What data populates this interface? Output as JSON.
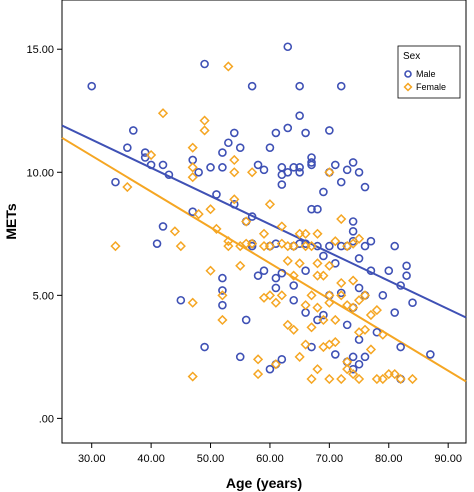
{
  "chart_data": {
    "type": "scatter",
    "xlabel": "Age (years)",
    "ylabel": "METs",
    "xlim": [
      25,
      93
    ],
    "ylim": [
      -1,
      17
    ],
    "xticks": [
      30,
      40,
      50,
      60,
      70,
      80,
      90
    ],
    "xtick_labels": [
      "30.00",
      "40.00",
      "50.00",
      "60.00",
      "70.00",
      "80.00",
      "90.00"
    ],
    "yticks": [
      0,
      5,
      10,
      15
    ],
    "ytick_labels": [
      ".00",
      "5.00",
      "10.00",
      "15.00"
    ],
    "legend": {
      "title": "Sex",
      "position": "top-right"
    },
    "series": [
      {
        "name": "Male",
        "marker": "circle",
        "color": "#3F51B5",
        "fit_line": [
          [
            25,
            11.9
          ],
          [
            93,
            4.1
          ]
        ],
        "points": [
          [
            30,
            13.5
          ],
          [
            34,
            9.6
          ],
          [
            36,
            11.0
          ],
          [
            37,
            11.7
          ],
          [
            39,
            10.8
          ],
          [
            39,
            10.6
          ],
          [
            40,
            10.3
          ],
          [
            41,
            7.1
          ],
          [
            42,
            10.3
          ],
          [
            42,
            7.8
          ],
          [
            43,
            9.9
          ],
          [
            45,
            4.8
          ],
          [
            47,
            10.5
          ],
          [
            47,
            8.4
          ],
          [
            48,
            10.0
          ],
          [
            49,
            2.9
          ],
          [
            49,
            14.4
          ],
          [
            50,
            10.2
          ],
          [
            51,
            9.1
          ],
          [
            52,
            10.2
          ],
          [
            52,
            10.8
          ],
          [
            52,
            5.7
          ],
          [
            52,
            5.2
          ],
          [
            52,
            4.6
          ],
          [
            53,
            11.2
          ],
          [
            54,
            8.7
          ],
          [
            54,
            11.6
          ],
          [
            55,
            11.0
          ],
          [
            55,
            2.5
          ],
          [
            56,
            4.0
          ],
          [
            56,
            8.0
          ],
          [
            57,
            13.5
          ],
          [
            57,
            7.1
          ],
          [
            57,
            7.0
          ],
          [
            57,
            8.2
          ],
          [
            58,
            5.8
          ],
          [
            58,
            10.3
          ],
          [
            59,
            6.0
          ],
          [
            59,
            10.1
          ],
          [
            60,
            11.0
          ],
          [
            60,
            7.0
          ],
          [
            60,
            2.0
          ],
          [
            61,
            11.6
          ],
          [
            61,
            7.1
          ],
          [
            61,
            5.7
          ],
          [
            61,
            5.3
          ],
          [
            61,
            2.2
          ],
          [
            62,
            9.9
          ],
          [
            62,
            9.5
          ],
          [
            62,
            10.2
          ],
          [
            62,
            5.9
          ],
          [
            62,
            2.4
          ],
          [
            63,
            15.1
          ],
          [
            63,
            11.8
          ],
          [
            63,
            10.0
          ],
          [
            64,
            10.2
          ],
          [
            64,
            7.0
          ],
          [
            64,
            5.4
          ],
          [
            64,
            4.8
          ],
          [
            65,
            13.5
          ],
          [
            65,
            12.3
          ],
          [
            65,
            10.0
          ],
          [
            65,
            10.2
          ],
          [
            65,
            7.1
          ],
          [
            66,
            11.6
          ],
          [
            66,
            7.1
          ],
          [
            66,
            6.0
          ],
          [
            66,
            4.3
          ],
          [
            67,
            10.6
          ],
          [
            67,
            10.4
          ],
          [
            67,
            10.3
          ],
          [
            67,
            8.5
          ],
          [
            67,
            2.9
          ],
          [
            68,
            8.5
          ],
          [
            68,
            7.0
          ],
          [
            68,
            4.0
          ],
          [
            69,
            9.2
          ],
          [
            69,
            6.6
          ],
          [
            69,
            4.2
          ],
          [
            70,
            11.7
          ],
          [
            70,
            10.0
          ],
          [
            70,
            7.0
          ],
          [
            70,
            5.0
          ],
          [
            71,
            10.3
          ],
          [
            71,
            6.3
          ],
          [
            71,
            2.6
          ],
          [
            72,
            13.5
          ],
          [
            72,
            9.6
          ],
          [
            72,
            7.0
          ],
          [
            72,
            5.1
          ],
          [
            73,
            10.1
          ],
          [
            73,
            7.0
          ],
          [
            73,
            3.8
          ],
          [
            73,
            2.3
          ],
          [
            74,
            10.4
          ],
          [
            74,
            8.0
          ],
          [
            74,
            7.6
          ],
          [
            74,
            7.2
          ],
          [
            74,
            4.5
          ],
          [
            74,
            2.5
          ],
          [
            74,
            2.0
          ],
          [
            75,
            10.0
          ],
          [
            75,
            6.5
          ],
          [
            75,
            5.3
          ],
          [
            75,
            3.2
          ],
          [
            75,
            2.2
          ],
          [
            76,
            9.4
          ],
          [
            76,
            7.0
          ],
          [
            76,
            5.0
          ],
          [
            76,
            2.5
          ],
          [
            77,
            7.2
          ],
          [
            77,
            6.0
          ],
          [
            78,
            3.5
          ],
          [
            79,
            5.0
          ],
          [
            80,
            6.0
          ],
          [
            81,
            7.0
          ],
          [
            81,
            4.3
          ],
          [
            82,
            5.4
          ],
          [
            82,
            2.9
          ],
          [
            82,
            1.6
          ],
          [
            83,
            5.8
          ],
          [
            83,
            6.2
          ],
          [
            84,
            4.7
          ],
          [
            87,
            2.6
          ]
        ]
      },
      {
        "name": "Female",
        "marker": "diamond",
        "color": "#F5A623",
        "fit_line": [
          [
            25,
            11.4
          ],
          [
            93,
            1.5
          ]
        ],
        "points": [
          [
            34,
            7.0
          ],
          [
            36,
            9.4
          ],
          [
            40,
            10.7
          ],
          [
            42,
            12.4
          ],
          [
            44,
            7.6
          ],
          [
            45,
            7.0
          ],
          [
            47,
            9.8
          ],
          [
            47,
            11.0
          ],
          [
            47,
            10.2
          ],
          [
            47,
            4.7
          ],
          [
            47,
            1.7
          ],
          [
            48,
            8.3
          ],
          [
            49,
            11.7
          ],
          [
            49,
            12.1
          ],
          [
            50,
            8.5
          ],
          [
            50,
            6.0
          ],
          [
            51,
            7.7
          ],
          [
            52,
            5.0
          ],
          [
            52,
            4.0
          ],
          [
            53,
            14.3
          ],
          [
            53,
            7.0
          ],
          [
            53,
            7.2
          ],
          [
            54,
            10.5
          ],
          [
            54,
            8.9
          ],
          [
            54,
            10.0
          ],
          [
            55,
            7.0
          ],
          [
            55,
            6.2
          ],
          [
            56,
            8.0
          ],
          [
            56,
            7.1
          ],
          [
            57,
            10.0
          ],
          [
            57,
            7.1
          ],
          [
            58,
            2.4
          ],
          [
            58,
            1.8
          ],
          [
            59,
            4.9
          ],
          [
            59,
            7.5
          ],
          [
            59,
            7.0
          ],
          [
            60,
            8.7
          ],
          [
            60,
            7.0
          ],
          [
            60,
            5.0
          ],
          [
            61,
            4.7
          ],
          [
            61,
            2.2
          ],
          [
            62,
            7.8
          ],
          [
            62,
            7.1
          ],
          [
            62,
            5.0
          ],
          [
            63,
            7.0
          ],
          [
            63,
            6.4
          ],
          [
            63,
            3.8
          ],
          [
            64,
            7.0
          ],
          [
            64,
            5.8
          ],
          [
            64,
            3.6
          ],
          [
            65,
            7.5
          ],
          [
            65,
            6.3
          ],
          [
            65,
            2.5
          ],
          [
            66,
            7.5
          ],
          [
            66,
            7.0
          ],
          [
            66,
            4.6
          ],
          [
            66,
            3.0
          ],
          [
            67,
            7.0
          ],
          [
            67,
            5.0
          ],
          [
            67,
            3.7
          ],
          [
            67,
            1.6
          ],
          [
            68,
            7.5
          ],
          [
            68,
            6.3
          ],
          [
            68,
            5.8
          ],
          [
            68,
            4.5
          ],
          [
            68,
            2.0
          ],
          [
            69,
            5.8
          ],
          [
            69,
            4.0
          ],
          [
            69,
            2.9
          ],
          [
            70,
            10.0
          ],
          [
            70,
            6.2
          ],
          [
            70,
            5.0
          ],
          [
            70,
            4.7
          ],
          [
            70,
            3.0
          ],
          [
            70,
            1.6
          ],
          [
            71,
            7.2
          ],
          [
            71,
            4.0
          ],
          [
            71,
            3.1
          ],
          [
            72,
            8.1
          ],
          [
            72,
            5.5
          ],
          [
            72,
            5.0
          ],
          [
            72,
            1.6
          ],
          [
            73,
            7.0
          ],
          [
            73,
            4.6
          ],
          [
            73,
            2.3
          ],
          [
            73,
            2.0
          ],
          [
            74,
            7.1
          ],
          [
            74,
            5.6
          ],
          [
            74,
            4.5
          ],
          [
            74,
            1.8
          ],
          [
            75,
            7.3
          ],
          [
            75,
            4.8
          ],
          [
            75,
            3.5
          ],
          [
            75,
            1.6
          ],
          [
            76,
            5.0
          ],
          [
            76,
            3.6
          ],
          [
            77,
            4.2
          ],
          [
            77,
            2.8
          ],
          [
            78,
            4.4
          ],
          [
            78,
            1.6
          ],
          [
            79,
            3.4
          ],
          [
            79,
            1.6
          ],
          [
            80,
            1.8
          ],
          [
            81,
            1.8
          ],
          [
            82,
            1.6
          ],
          [
            84,
            1.6
          ]
        ]
      }
    ]
  }
}
